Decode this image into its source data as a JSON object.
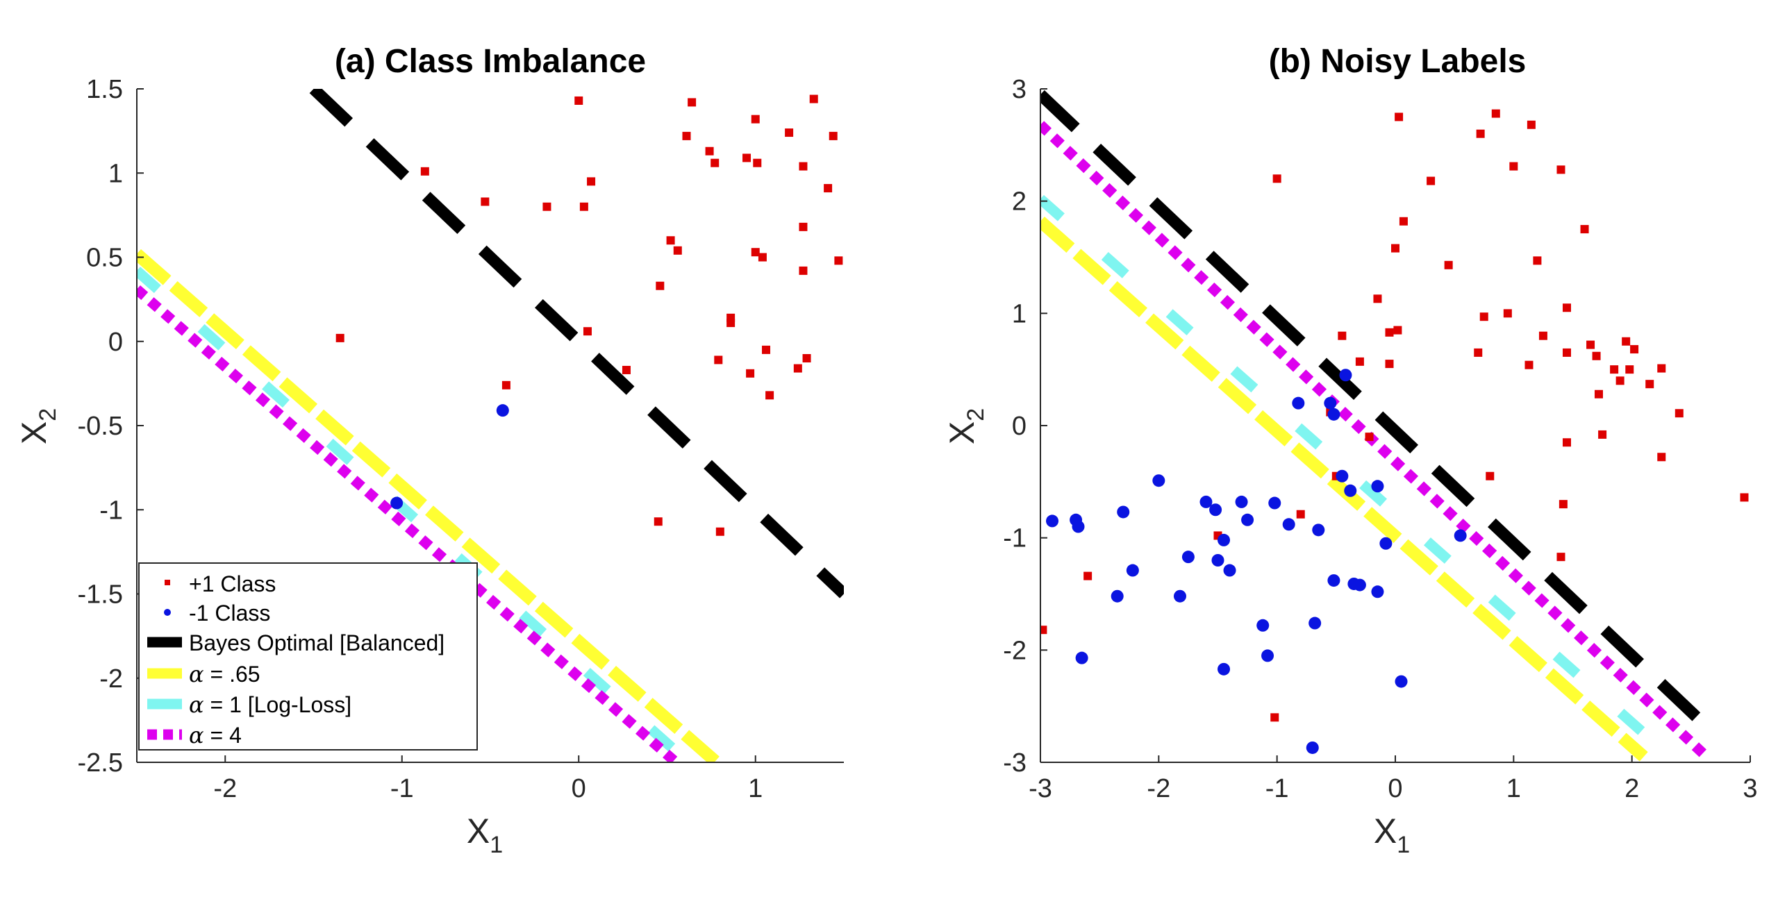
{
  "chart_data": [
    {
      "type": "scatter",
      "title": "(a) Class Imbalance",
      "xlabel": "X",
      "xlabel_sub": "1",
      "ylabel": "X",
      "ylabel_sub": "2",
      "xlim": [
        -2.5,
        1.5
      ],
      "ylim": [
        -2.5,
        1.5
      ],
      "xticks": [
        -2,
        -1,
        0,
        1
      ],
      "xtick_labels": [
        "-2",
        "-1",
        "0",
        "1"
      ],
      "yticks": [
        -2.5,
        -2,
        -1.5,
        -1,
        -0.5,
        0,
        0.5,
        1,
        1.5
      ],
      "ytick_labels": [
        "-2.5",
        "-2",
        "-1.5",
        "-1",
        "-0.5",
        "0",
        "0.5",
        "1",
        "1.5"
      ],
      "points": {
        "positive": [
          [
            -1.35,
            0.02
          ],
          [
            -0.87,
            1.01
          ],
          [
            -0.53,
            0.83
          ],
          [
            -0.41,
            -0.26
          ],
          [
            -0.18,
            0.8
          ],
          [
            0.0,
            1.43
          ],
          [
            0.03,
            0.8
          ],
          [
            0.05,
            0.06
          ],
          [
            0.07,
            0.95
          ],
          [
            0.27,
            -0.17
          ],
          [
            0.45,
            -1.07
          ],
          [
            0.46,
            0.33
          ],
          [
            0.52,
            0.6
          ],
          [
            0.56,
            0.54
          ],
          [
            0.61,
            1.22
          ],
          [
            0.64,
            1.42
          ],
          [
            0.74,
            1.13
          ],
          [
            0.77,
            1.06
          ],
          [
            0.8,
            -1.13
          ],
          [
            0.79,
            -0.11
          ],
          [
            0.86,
            0.14
          ],
          [
            0.86,
            0.11
          ],
          [
            0.95,
            1.09
          ],
          [
            0.97,
            -0.19
          ],
          [
            1.0,
            1.32
          ],
          [
            1.0,
            0.53
          ],
          [
            1.01,
            1.06
          ],
          [
            1.04,
            0.5
          ],
          [
            1.06,
            -0.05
          ],
          [
            1.08,
            -0.32
          ],
          [
            1.19,
            1.24
          ],
          [
            1.24,
            -0.16
          ],
          [
            1.27,
            1.04
          ],
          [
            1.27,
            0.68
          ],
          [
            1.27,
            0.42
          ],
          [
            1.29,
            -0.1
          ],
          [
            1.33,
            1.44
          ],
          [
            1.41,
            0.91
          ],
          [
            1.44,
            1.22
          ],
          [
            1.47,
            0.48
          ]
        ],
        "negative": [
          [
            -1.03,
            -0.96
          ],
          [
            -0.43,
            -0.41
          ]
        ]
      },
      "lines": [
        {
          "name": "Bayes Optimal [Balanced]",
          "x": [
            -1.5,
            1.5
          ],
          "y": [
            1.5,
            -1.5
          ]
        },
        {
          "name": "α = .65",
          "x": [
            -2.5,
            0.78
          ],
          "y": [
            0.52,
            -2.5
          ]
        },
        {
          "name": "α = 1 [Log-Loss]",
          "x": [
            -2.5,
            0.62
          ],
          "y": [
            0.42,
            -2.5
          ]
        },
        {
          "name": "α = 4",
          "x": [
            -2.5,
            0.55
          ],
          "y": [
            0.31,
            -2.5
          ]
        }
      ],
      "legend": {
        "position": "bottom-left",
        "entries": [
          {
            "label": "+1 Class"
          },
          {
            "label": "-1 Class"
          },
          {
            "label": "Bayes Optimal [Balanced]"
          },
          {
            "symbol": "α",
            "label": " = .65"
          },
          {
            "symbol": "α",
            "label": " = 1 [Log-Loss]"
          },
          {
            "symbol": "α",
            "label": " = 4"
          }
        ]
      }
    },
    {
      "type": "scatter",
      "title": "(b) Noisy Labels",
      "xlabel": "X",
      "xlabel_sub": "1",
      "ylabel": "X",
      "ylabel_sub": "2",
      "xlim": [
        -3,
        3
      ],
      "ylim": [
        -3,
        3
      ],
      "xticks": [
        -3,
        -2,
        -1,
        0,
        1,
        2,
        3
      ],
      "xtick_labels": [
        "-3",
        "-2",
        "-1",
        "0",
        "1",
        "2",
        "3"
      ],
      "yticks": [
        -3,
        -2,
        -1,
        0,
        1,
        2,
        3
      ],
      "ytick_labels": [
        "-3",
        "-2",
        "-1",
        "0",
        "1",
        "2",
        "3"
      ],
      "points": {
        "positive": [
          [
            -2.98,
            -1.82
          ],
          [
            -2.6,
            -1.34
          ],
          [
            -1.5,
            -0.98
          ],
          [
            -1.0,
            2.2
          ],
          [
            -1.02,
            -2.6
          ],
          [
            -0.8,
            -0.79
          ],
          [
            -0.55,
            0.12
          ],
          [
            -0.5,
            -0.45
          ],
          [
            -0.45,
            0.8
          ],
          [
            -0.3,
            0.57
          ],
          [
            -0.22,
            -0.1
          ],
          [
            -0.15,
            1.13
          ],
          [
            -0.05,
            0.55
          ],
          [
            -0.05,
            0.83
          ],
          [
            0.0,
            1.58
          ],
          [
            0.03,
            2.75
          ],
          [
            0.02,
            0.85
          ],
          [
            0.07,
            1.82
          ],
          [
            0.3,
            2.18
          ],
          [
            0.45,
            1.43
          ],
          [
            0.7,
            0.65
          ],
          [
            0.72,
            2.6
          ],
          [
            0.75,
            0.97
          ],
          [
            0.8,
            -0.45
          ],
          [
            0.85,
            2.78
          ],
          [
            0.95,
            1.0
          ],
          [
            1.0,
            2.31
          ],
          [
            1.13,
            0.54
          ],
          [
            1.15,
            2.68
          ],
          [
            1.2,
            1.47
          ],
          [
            1.25,
            0.8
          ],
          [
            1.4,
            2.28
          ],
          [
            1.42,
            -0.7
          ],
          [
            1.45,
            0.65
          ],
          [
            1.45,
            1.05
          ],
          [
            1.45,
            -0.15
          ],
          [
            1.6,
            1.75
          ],
          [
            1.65,
            0.72
          ],
          [
            1.7,
            0.62
          ],
          [
            1.72,
            0.28
          ],
          [
            1.75,
            -0.08
          ],
          [
            1.85,
            0.5
          ],
          [
            1.9,
            0.4
          ],
          [
            1.95,
            0.75
          ],
          [
            1.98,
            0.5
          ],
          [
            2.02,
            0.68
          ],
          [
            2.15,
            0.37
          ],
          [
            2.25,
            0.51
          ],
          [
            2.25,
            -0.28
          ],
          [
            2.4,
            0.11
          ],
          [
            2.95,
            -0.64
          ],
          [
            1.4,
            -1.17
          ]
        ],
        "negative": [
          [
            -2.9,
            -0.85
          ],
          [
            -2.7,
            -0.84
          ],
          [
            -2.68,
            -0.9
          ],
          [
            -2.65,
            -2.07
          ],
          [
            -2.35,
            -1.52
          ],
          [
            -2.3,
            -0.77
          ],
          [
            -2.22,
            -1.29
          ],
          [
            -2.0,
            -0.49
          ],
          [
            -1.82,
            -1.52
          ],
          [
            -1.75,
            -1.17
          ],
          [
            -1.6,
            -0.68
          ],
          [
            -1.52,
            -0.75
          ],
          [
            -1.5,
            -1.2
          ],
          [
            -1.45,
            -1.02
          ],
          [
            -1.45,
            -2.17
          ],
          [
            -1.4,
            -1.29
          ],
          [
            -1.3,
            -0.68
          ],
          [
            -1.25,
            -0.84
          ],
          [
            -1.12,
            -1.78
          ],
          [
            -1.08,
            -2.05
          ],
          [
            -1.02,
            -0.69
          ],
          [
            -0.9,
            -0.88
          ],
          [
            -0.7,
            -2.87
          ],
          [
            -0.68,
            -1.76
          ],
          [
            -0.65,
            -0.93
          ],
          [
            -0.52,
            -1.38
          ],
          [
            -0.55,
            0.2
          ],
          [
            -0.52,
            0.1
          ],
          [
            -0.45,
            -0.45
          ],
          [
            -0.42,
            0.45
          ],
          [
            -0.38,
            -0.58
          ],
          [
            -0.35,
            -1.41
          ],
          [
            -0.3,
            -1.42
          ],
          [
            -0.15,
            -0.54
          ],
          [
            -0.15,
            -1.48
          ],
          [
            -0.08,
            -1.05
          ],
          [
            0.05,
            -2.28
          ],
          [
            0.55,
            -0.98
          ],
          [
            -0.82,
            0.2
          ]
        ]
      },
      "lines": [
        {
          "name": "Bayes Optimal [Balanced]",
          "x": [
            -3.0,
            2.7
          ],
          "y": [
            2.95,
            -2.75
          ]
        },
        {
          "name": "α = .65",
          "x": [
            -3.0,
            2.1
          ],
          "y": [
            1.82,
            -2.95
          ]
        },
        {
          "name": "α = 1 [Log-Loss]",
          "x": [
            -3.0,
            2.25
          ],
          "y": [
            2.02,
            -2.88
          ]
        },
        {
          "name": "α = 4",
          "x": [
            -3.0,
            2.6
          ],
          "y": [
            2.68,
            -2.92
          ]
        }
      ]
    }
  ],
  "colors": {
    "positive": "#dd0000",
    "negative": "#0a14e0",
    "bayes": "#000000",
    "alpha065": "#ffff33",
    "alpha1": "#7ff5f0",
    "alpha4": "#dd00ee",
    "axis": "#262626"
  }
}
